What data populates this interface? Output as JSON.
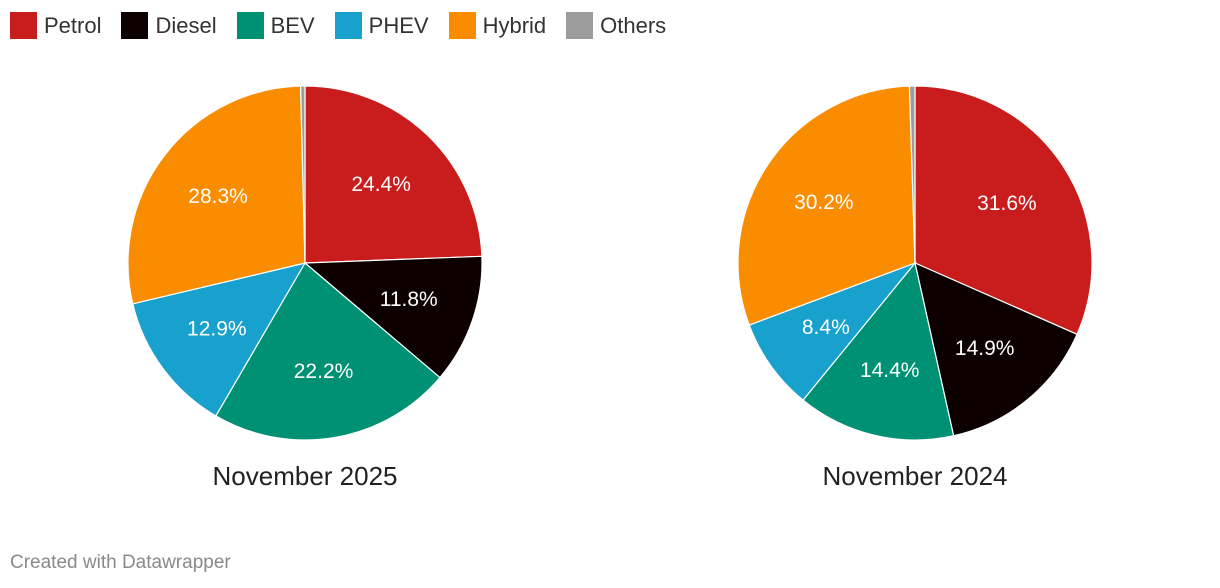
{
  "legend": [
    {
      "label": "Petrol",
      "color": "#c91c1c"
    },
    {
      "label": "Diesel",
      "color": "#0d0000"
    },
    {
      "label": "BEV",
      "color": "#009175"
    },
    {
      "label": "PHEV",
      "color": "#18a1cd"
    },
    {
      "label": "Hybrid",
      "color": "#fa8c00"
    },
    {
      "label": "Others",
      "color": "#9c9c9c"
    }
  ],
  "chart_data": [
    {
      "type": "pie",
      "title": "November 2025",
      "categories": [
        "Petrol",
        "Diesel",
        "BEV",
        "PHEV",
        "Hybrid",
        "Others"
      ],
      "values": [
        24.4,
        11.8,
        22.2,
        12.9,
        28.3,
        0.4
      ],
      "labels": [
        "24.4%",
        "11.8%",
        "22.2%",
        "12.9%",
        "28.3%",
        ""
      ]
    },
    {
      "type": "pie",
      "title": "November 2024",
      "categories": [
        "Petrol",
        "Diesel",
        "BEV",
        "PHEV",
        "Hybrid",
        "Others"
      ],
      "values": [
        31.6,
        14.9,
        14.4,
        8.4,
        30.2,
        0.5
      ],
      "labels": [
        "31.6%",
        "14.9%",
        "14.4%",
        "8.4%",
        "30.2%",
        ""
      ]
    }
  ],
  "footer": "Created with Datawrapper"
}
